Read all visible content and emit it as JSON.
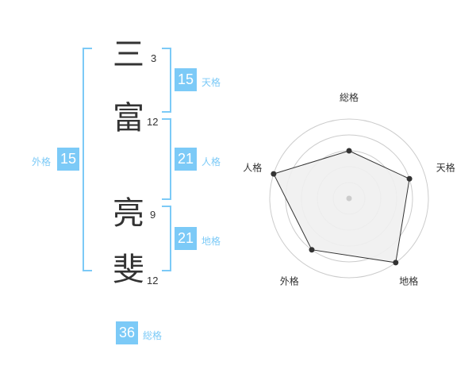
{
  "name": {
    "chars": [
      {
        "char": "三",
        "strokes": "3"
      },
      {
        "char": "富",
        "strokes": "12"
      },
      {
        "char": "亮",
        "strokes": "9"
      },
      {
        "char": "斐",
        "strokes": "12"
      }
    ]
  },
  "fortunes": {
    "tenkaku": {
      "label": "天格",
      "value": "15"
    },
    "jinkaku": {
      "label": "人格",
      "value": "21"
    },
    "chikaku": {
      "label": "地格",
      "value": "21"
    },
    "gaikaku": {
      "label": "外格",
      "value": "15"
    },
    "soukaku": {
      "label": "総格",
      "value": "36"
    }
  },
  "chart_data": {
    "type": "radar",
    "axes": [
      "総格",
      "天格",
      "地格",
      "外格",
      "人格"
    ],
    "values": [
      3,
      4,
      5,
      4,
      5
    ],
    "range": [
      0,
      5
    ],
    "fill_color": "#f0f0f0",
    "line_color": "#333333",
    "grid_color": "#cccccc"
  }
}
